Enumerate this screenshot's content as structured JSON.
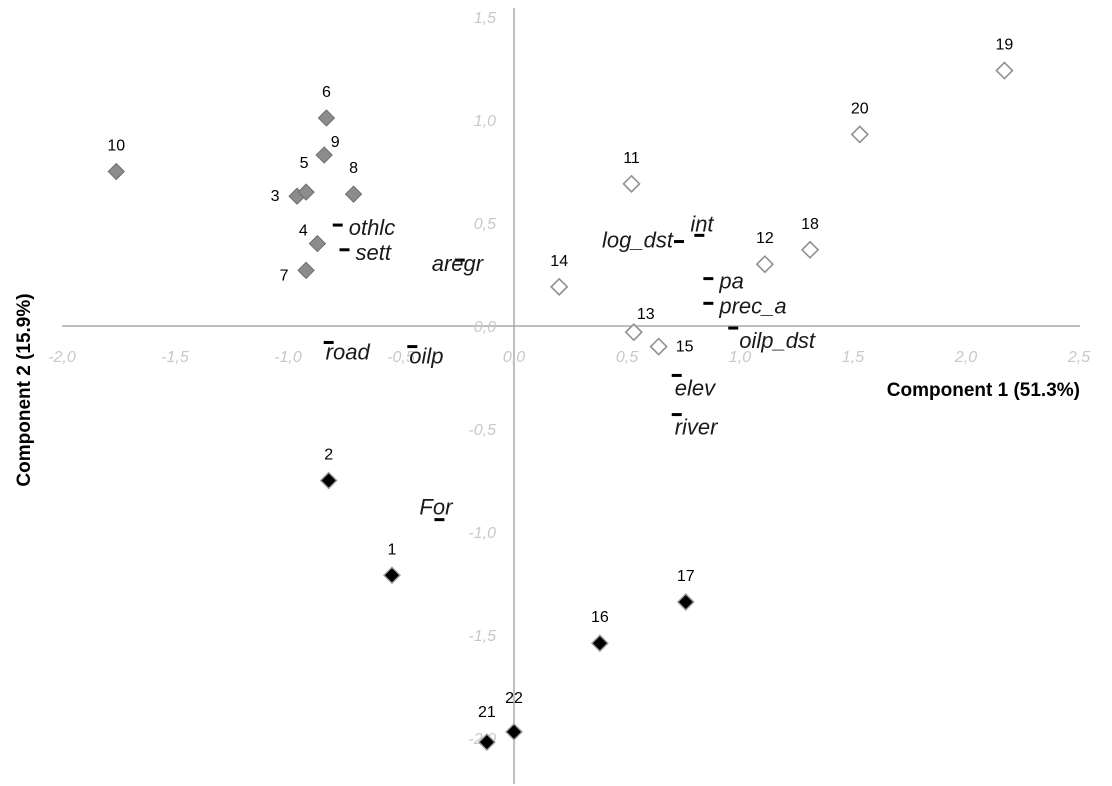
{
  "chart_data": {
    "type": "scatter",
    "title": "",
    "xlabel": "Component 1 (51.3%)",
    "ylabel": "Component 2 (15.9%)",
    "xlim": [
      -2.0,
      2.5
    ],
    "ylim": [
      -2.0,
      1.5
    ],
    "grid": false,
    "x_ticks": [
      {
        "value": -2.0,
        "label": "-2,0"
      },
      {
        "value": -1.5,
        "label": "-1,5"
      },
      {
        "value": -1.0,
        "label": "-1,0"
      },
      {
        "value": -0.5,
        "label": "-0,5"
      },
      {
        "value": 0.0,
        "label": "0,0"
      },
      {
        "value": 0.5,
        "label": "0,5"
      },
      {
        "value": 1.0,
        "label": "1,0"
      },
      {
        "value": 1.5,
        "label": "1,5"
      },
      {
        "value": 2.0,
        "label": "2,0"
      },
      {
        "value": 2.5,
        "label": "2,5"
      }
    ],
    "y_ticks": [
      {
        "value": 1.5,
        "label": "1,5"
      },
      {
        "value": 1.0,
        "label": "1,0"
      },
      {
        "value": 0.5,
        "label": "0,5"
      },
      {
        "value": 0.0,
        "label": "0,0"
      },
      {
        "value": -0.5,
        "label": "-0,5"
      },
      {
        "value": -1.0,
        "label": "-1,0"
      },
      {
        "value": -1.5,
        "label": "-1,5"
      },
      {
        "value": -2.0,
        "label": "-2,0"
      }
    ],
    "series": [
      {
        "style": "grey-filled",
        "points": [
          {
            "label": "3",
            "x": -0.96,
            "y": 0.63
          },
          {
            "label": "4",
            "x": -0.87,
            "y": 0.4
          },
          {
            "label": "5",
            "x": -0.92,
            "y": 0.65
          },
          {
            "label": "6",
            "x": -0.83,
            "y": 1.01
          },
          {
            "label": "7",
            "x": -0.92,
            "y": 0.27
          },
          {
            "label": "8",
            "x": -0.71,
            "y": 0.64
          },
          {
            "label": "9",
            "x": -0.84,
            "y": 0.83
          },
          {
            "label": "10",
            "x": -1.76,
            "y": 0.75
          }
        ]
      },
      {
        "style": "hollow",
        "points": [
          {
            "label": "11",
            "x": 0.52,
            "y": 0.69
          },
          {
            "label": "12",
            "x": 1.11,
            "y": 0.3
          },
          {
            "label": "13",
            "x": 0.53,
            "y": -0.03
          },
          {
            "label": "14",
            "x": 0.2,
            "y": 0.19
          },
          {
            "label": "15",
            "x": 0.64,
            "y": -0.1
          },
          {
            "label": "18",
            "x": 1.31,
            "y": 0.37
          },
          {
            "label": "19",
            "x": 2.17,
            "y": 1.24
          },
          {
            "label": "20",
            "x": 1.53,
            "y": 0.93
          }
        ]
      },
      {
        "style": "black-filled",
        "points": [
          {
            "label": "1",
            "x": -0.54,
            "y": -1.21
          },
          {
            "label": "2",
            "x": -0.82,
            "y": -0.75
          },
          {
            "label": "16",
            "x": 0.38,
            "y": -1.54
          },
          {
            "label": "17",
            "x": 0.76,
            "y": -1.34
          },
          {
            "label": "21",
            "x": -0.12,
            "y": -2.02
          },
          {
            "label": "22",
            "x": 0.0,
            "y": -1.97
          }
        ]
      }
    ],
    "variables": [
      {
        "name": "othlc",
        "x": -0.78,
        "y": 0.49
      },
      {
        "name": "sett",
        "x": -0.75,
        "y": 0.37
      },
      {
        "name": "aregr",
        "x": -0.24,
        "y": 0.32
      },
      {
        "name": "road",
        "x": -0.82,
        "y": -0.08
      },
      {
        "name": "oilp",
        "x": -0.45,
        "y": -0.1
      },
      {
        "name": "For",
        "x": -0.33,
        "y": -0.94
      },
      {
        "name": "int",
        "x": 0.82,
        "y": 0.44
      },
      {
        "name": "log_dst",
        "x": 0.73,
        "y": 0.41
      },
      {
        "name": "pa",
        "x": 0.86,
        "y": 0.23
      },
      {
        "name": "prec_a",
        "x": 0.86,
        "y": 0.11
      },
      {
        "name": "oilp_dst",
        "x": 0.97,
        "y": -0.01
      },
      {
        "name": "elev",
        "x": 0.72,
        "y": -0.24
      },
      {
        "name": "river",
        "x": 0.72,
        "y": -0.43
      }
    ],
    "colors": {
      "axis": "#aaaaaa",
      "tick_text": "#c8c8c8",
      "grey_fill": "#8c8c8c",
      "grey_stroke": "#6e6e6e",
      "hollow_stroke": "#909090",
      "black_fill": "#000000",
      "black_stroke": "#a0a0a0",
      "var_marker": "#000000"
    }
  }
}
